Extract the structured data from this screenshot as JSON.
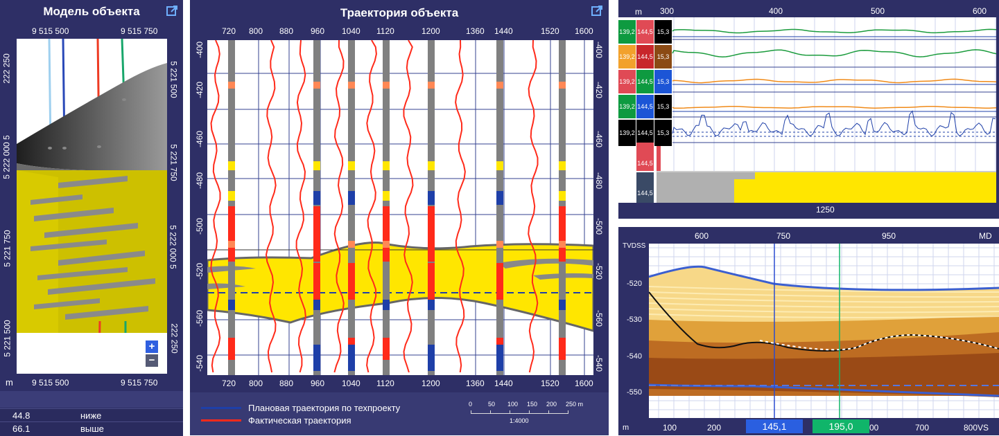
{
  "model_panel": {
    "title": "Модель объекта",
    "top_x_labels": [
      "9 515 500",
      "9 515 750"
    ],
    "bottom_x_labels": [
      "9 515 500",
      "9 515 750"
    ],
    "left_y_labels": [
      "222 250",
      "5 222 000 5",
      "5 221 750",
      "5 221 500"
    ],
    "right_y_labels": [
      "5 221 500",
      "5 221 750",
      "5 222 000 5",
      "222 250"
    ],
    "unit": "m",
    "zoom_in": "+",
    "zoom_out": "−",
    "stats": [
      {
        "value": "44.8",
        "label": "ниже"
      },
      {
        "value": "66.1",
        "label": "выше"
      }
    ]
  },
  "trajectory_panel": {
    "title": "Траектория объекта",
    "x_labels": [
      "720",
      "800",
      "880",
      "960",
      "1040",
      "1120",
      "1200",
      "1360",
      "1440",
      "1520",
      "1600"
    ],
    "y_labels_left": [
      "-400",
      "-420",
      "-460",
      "-480",
      "-500",
      "-520",
      "-560",
      "-540"
    ],
    "y_labels_right": [
      "-400",
      "-420",
      "-460",
      "-480",
      "-500",
      "-520",
      "-560",
      "-540"
    ],
    "legend": {
      "planned": "Плановая траектория по техпроекту",
      "actual": "Фактическая траектория"
    },
    "scale": {
      "ticks": [
        "0",
        "50",
        "100",
        "150",
        "200",
        "250 m"
      ],
      "ratio": "1:4000"
    }
  },
  "logs_panel": {
    "unit": "m",
    "x_labels": [
      "300",
      "400",
      "500",
      "600"
    ],
    "bottom_label": "1250",
    "rows": [
      {
        "cells": [
          "139,2",
          "144,5",
          "15,3"
        ],
        "colors": [
          "#0e9a40",
          "#e04a55",
          "#000000"
        ]
      },
      {
        "cells": [
          "139,2",
          "144,5",
          "15,3"
        ],
        "colors": [
          "#f2a12c",
          "#c8262b",
          "#8b4a14"
        ]
      },
      {
        "cells": [
          "139,2",
          "144,5",
          "15,3"
        ],
        "colors": [
          "#e04a55",
          "#0e9a40",
          "#1c55d6"
        ]
      },
      {
        "cells": [
          "139,2",
          "144,5",
          "15,3"
        ],
        "colors": [
          "#0e9a40",
          "#1c55d6",
          "#000000"
        ]
      },
      {
        "cells": [
          "139,2",
          "144,5",
          "15,3"
        ],
        "colors": [
          "#000000",
          "#000000",
          "#000000"
        ]
      }
    ],
    "extra_cells": [
      "144,5",
      "144,5"
    ]
  },
  "section_panel": {
    "top_labels": [
      "600",
      "750",
      "950"
    ],
    "top_right": "MD",
    "y_axis_title": "TVDSS",
    "y_labels": [
      "-520",
      "-530",
      "-540",
      "-550"
    ],
    "bottom_unit": "m",
    "bottom_labels": [
      "100",
      "200",
      "700",
      "800"
    ],
    "bottom_partial": "00",
    "bottom_right": "VS",
    "marker_blue": "145,1",
    "marker_green": "195,0"
  },
  "colors": {
    "panel_bg": "#2e2f66",
    "formation_yellow": "#ffe600",
    "actual_red": "#ff2a1a",
    "planned_blue": "#1e3fa8",
    "accent_link": "#58a8ff"
  }
}
